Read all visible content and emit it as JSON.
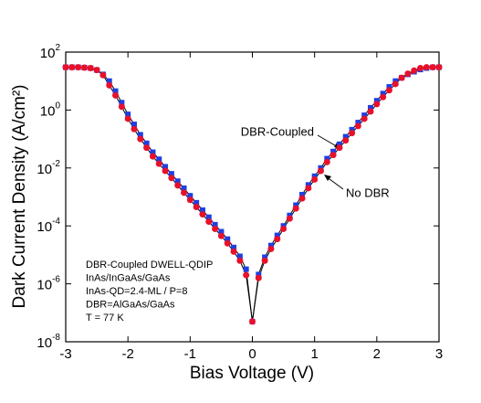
{
  "chart_data": {
    "type": "line",
    "log_y": true,
    "xlabel": "Bias Voltage (V)",
    "ylabel": "Dark Current Density (A/cm²)",
    "xlim": [
      -3,
      3
    ],
    "xticks": [
      -3,
      -2,
      -1,
      0,
      1,
      2,
      3
    ],
    "ylim": [
      1e-08,
      100
    ],
    "yticks": [
      {
        "value": 1e-08,
        "label": "10",
        "exponent": "-8"
      },
      {
        "value": 1e-06,
        "label": "10",
        "exponent": "-6"
      },
      {
        "value": 0.0001,
        "label": "10",
        "exponent": "-4"
      },
      {
        "value": 0.01,
        "label": "10",
        "exponent": "-2"
      },
      {
        "value": 1,
        "label": "10",
        "exponent": "0"
      },
      {
        "value": 100,
        "label": "10",
        "exponent": "2"
      }
    ],
    "annotations": [
      "DBR-Coupled DWELL-QDIP",
      "InAs/InGaAs/GaAs",
      "InAs-QD=2.4-ML / P=8",
      "DBR=AlGaAs/GaAs",
      "T = 77 K"
    ],
    "x": [
      -3,
      -2.9,
      -2.8,
      -2.7,
      -2.6,
      -2.5,
      -2.4,
      -2.3,
      -2.2,
      -2.1,
      -2,
      -1.9,
      -1.8,
      -1.7,
      -1.6,
      -1.5,
      -1.4,
      -1.3,
      -1.2,
      -1.1,
      -1,
      -0.9,
      -0.8,
      -0.7,
      -0.6,
      -0.5,
      -0.4,
      -0.3,
      -0.2,
      -0.1,
      0,
      0.1,
      0.2,
      0.3,
      0.4,
      0.5,
      0.6,
      0.7,
      0.8,
      0.9,
      1,
      1.1,
      1.2,
      1.3,
      1.4,
      1.5,
      1.6,
      1.7,
      1.8,
      1.9,
      2,
      2.1,
      2.2,
      2.3,
      2.4,
      2.5,
      2.6,
      2.7,
      2.8,
      2.9,
      3
    ],
    "series": [
      {
        "name": "DBR-Coupled",
        "color": "#1f3fe0",
        "marker": "square",
        "values": [
          30,
          30,
          30,
          29,
          28,
          24,
          17,
          10,
          4.5,
          1.8,
          0.71,
          0.32,
          0.14,
          0.071,
          0.035,
          0.02,
          0.011,
          0.0063,
          0.0035,
          0.002,
          0.0011,
          0.00063,
          0.00035,
          0.0002,
          0.00011,
          6.3e-05,
          3.5e-05,
          1.8e-05,
          8.9e-06,
          3.2e-06,
          5e-08,
          2.1e-06,
          8.3e-06,
          2.1e-05,
          4.7e-05,
          0.0001,
          0.00023,
          0.00052,
          0.0012,
          0.0026,
          0.0052,
          0.01,
          0.021,
          0.037,
          0.066,
          0.12,
          0.21,
          0.37,
          0.66,
          1.2,
          2.1,
          3.7,
          6.3,
          10,
          13,
          17,
          21,
          25,
          28,
          30,
          30
        ]
      },
      {
        "name": "No DBR",
        "color": "#e8102a",
        "marker": "circle",
        "values": [
          30,
          30,
          30,
          29,
          28,
          24,
          16,
          7.1,
          3.2,
          1.3,
          0.5,
          0.22,
          0.1,
          0.05,
          0.025,
          0.014,
          0.0079,
          0.0045,
          0.0025,
          0.0014,
          0.00079,
          0.00045,
          0.00025,
          0.00014,
          7.9e-05,
          4.5e-05,
          2.5e-05,
          1.3e-05,
          6.3e-06,
          2e-06,
          5e-08,
          1.6e-06,
          6.3e-06,
          1.6e-05,
          3.5e-05,
          7.9e-05,
          0.00018,
          0.0004,
          0.00089,
          0.002,
          0.004,
          0.0079,
          0.016,
          0.028,
          0.05,
          0.089,
          0.16,
          0.28,
          0.5,
          0.89,
          1.6,
          2.8,
          4.8,
          7.9,
          13,
          18,
          23,
          28,
          30,
          30,
          30
        ]
      }
    ]
  }
}
